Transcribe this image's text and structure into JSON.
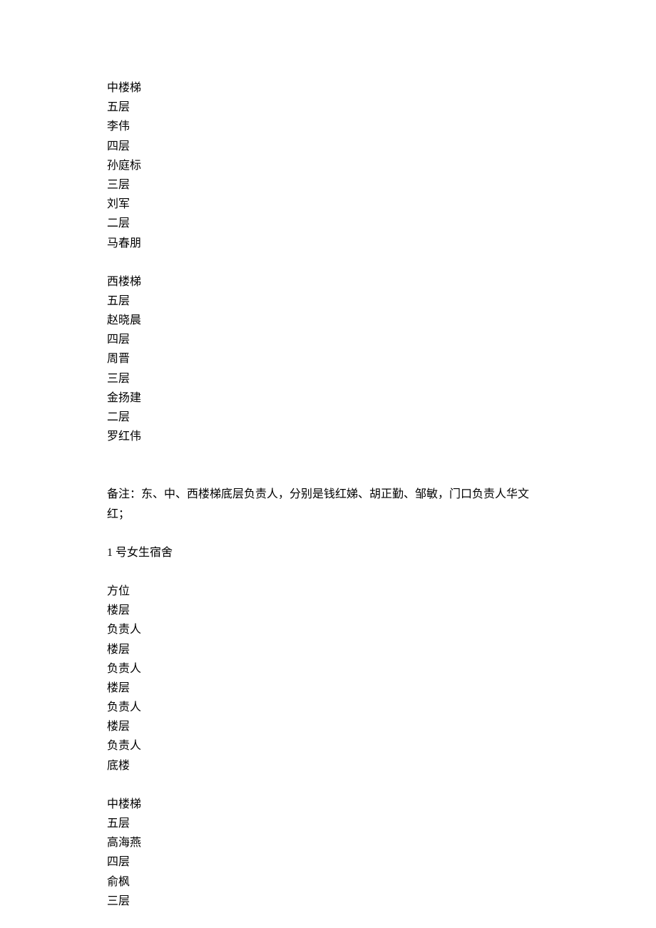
{
  "document": {
    "font_family": "SimSun",
    "font_size": 16,
    "text_color": "#000000",
    "background_color": "#ffffff",
    "line_height": 1.7,
    "sections": [
      {
        "id": "middle_stair",
        "lines": [
          "中楼梯",
          "五层",
          "李伟",
          "四层",
          "孙庭标",
          "三层",
          "刘军",
          "二层",
          "马春朋"
        ]
      },
      {
        "id": "west_stair",
        "lines": [
          "西楼梯",
          "五层",
          "赵晓晨",
          "四层",
          "周晋",
          "三层",
          "金扬建",
          "二层",
          "罗红伟"
        ]
      },
      {
        "id": "note",
        "lines": [
          "备注：东、中、西楼梯底层负责人，分别是钱红娣、胡正勤、邹敏，门口负责人华文红；"
        ]
      },
      {
        "id": "dorm_title",
        "lines": [
          "1 号女生宿舍"
        ]
      },
      {
        "id": "headers",
        "lines": [
          "方位",
          "楼层",
          "负责人",
          "楼层",
          "负责人",
          "楼层",
          "负责人",
          "楼层",
          "负责人",
          "底楼"
        ]
      },
      {
        "id": "middle_stair_2",
        "lines": [
          "中楼梯",
          "五层",
          "高海燕",
          "四层",
          "俞枫",
          "三层"
        ]
      }
    ]
  }
}
